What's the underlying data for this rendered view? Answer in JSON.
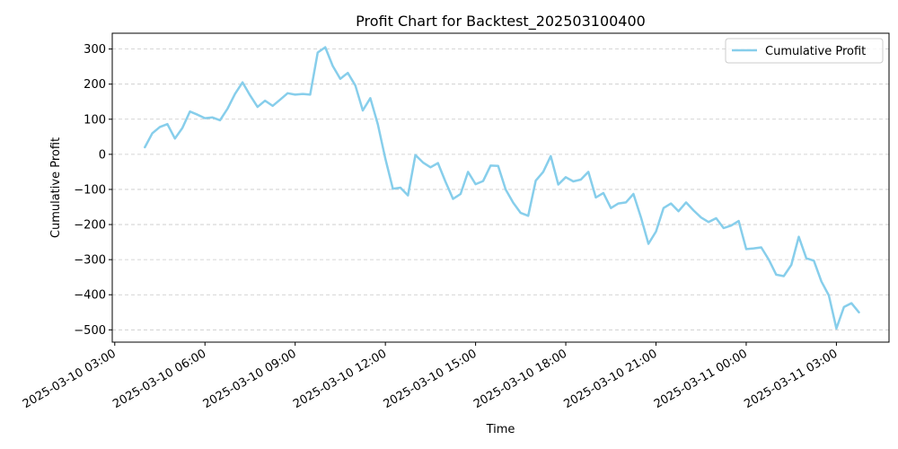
{
  "chart_data": {
    "type": "line",
    "title": "Profit Chart for Backtest_202503100400",
    "xlabel": "Time",
    "ylabel": "Cumulative Profit",
    "xlim": [
      "2025-03-10 02:55",
      "2025-03-11 04:45"
    ],
    "ylim": [
      -535,
      345
    ],
    "grid": {
      "x": false,
      "y": true,
      "style": "dashed"
    },
    "legend_position": "top-right",
    "x_ticks": [
      "2025-03-10 03:00",
      "2025-03-10 06:00",
      "2025-03-10 09:00",
      "2025-03-10 12:00",
      "2025-03-10 15:00",
      "2025-03-10 18:00",
      "2025-03-10 21:00",
      "2025-03-11 00:00",
      "2025-03-11 03:00"
    ],
    "y_ticks": [
      300,
      200,
      100,
      0,
      -100,
      -200,
      -300,
      -400,
      -500
    ],
    "series": [
      {
        "name": "Cumulative Profit",
        "color": "#87ceeb",
        "x": [
          "2025-03-10 04:00",
          "2025-03-10 04:15",
          "2025-03-10 04:30",
          "2025-03-10 04:45",
          "2025-03-10 05:00",
          "2025-03-10 05:15",
          "2025-03-10 05:30",
          "2025-03-10 05:45",
          "2025-03-10 06:00",
          "2025-03-10 06:15",
          "2025-03-10 06:30",
          "2025-03-10 06:45",
          "2025-03-10 07:00",
          "2025-03-10 07:15",
          "2025-03-10 07:30",
          "2025-03-10 07:45",
          "2025-03-10 08:00",
          "2025-03-10 08:15",
          "2025-03-10 08:30",
          "2025-03-10 08:45",
          "2025-03-10 09:00",
          "2025-03-10 09:15",
          "2025-03-10 09:30",
          "2025-03-10 09:45",
          "2025-03-10 10:00",
          "2025-03-10 10:15",
          "2025-03-10 10:30",
          "2025-03-10 10:45",
          "2025-03-10 11:00",
          "2025-03-10 11:15",
          "2025-03-10 11:30",
          "2025-03-10 11:45",
          "2025-03-10 12:00",
          "2025-03-10 12:15",
          "2025-03-10 12:30",
          "2025-03-10 12:45",
          "2025-03-10 13:00",
          "2025-03-10 13:15",
          "2025-03-10 13:30",
          "2025-03-10 13:45",
          "2025-03-10 14:00",
          "2025-03-10 14:15",
          "2025-03-10 14:30",
          "2025-03-10 14:45",
          "2025-03-10 15:00",
          "2025-03-10 15:15",
          "2025-03-10 15:30",
          "2025-03-10 15:45",
          "2025-03-10 16:00",
          "2025-03-10 16:15",
          "2025-03-10 16:30",
          "2025-03-10 16:45",
          "2025-03-10 17:00",
          "2025-03-10 17:15",
          "2025-03-10 17:30",
          "2025-03-10 17:45",
          "2025-03-10 18:00",
          "2025-03-10 18:15",
          "2025-03-10 18:30",
          "2025-03-10 18:45",
          "2025-03-10 19:00",
          "2025-03-10 19:15",
          "2025-03-10 19:30",
          "2025-03-10 19:45",
          "2025-03-10 20:00",
          "2025-03-10 20:15",
          "2025-03-10 20:30",
          "2025-03-10 20:45",
          "2025-03-10 21:00",
          "2025-03-10 21:15",
          "2025-03-10 21:30",
          "2025-03-10 21:45",
          "2025-03-10 22:00",
          "2025-03-10 22:15",
          "2025-03-10 22:30",
          "2025-03-10 22:45",
          "2025-03-10 23:00",
          "2025-03-10 23:15",
          "2025-03-10 23:30",
          "2025-03-10 23:45",
          "2025-03-11 00:00",
          "2025-03-11 00:15",
          "2025-03-11 00:30",
          "2025-03-11 00:45",
          "2025-03-11 01:00",
          "2025-03-11 01:15",
          "2025-03-11 01:30",
          "2025-03-11 01:45",
          "2025-03-11 02:00",
          "2025-03-11 02:15",
          "2025-03-11 02:30",
          "2025-03-11 02:45",
          "2025-03-11 03:00",
          "2025-03-11 03:15",
          "2025-03-11 03:30",
          "2025-03-11 03:45"
        ],
        "y": [
          20,
          60,
          78,
          86,
          45,
          75,
          122,
          113,
          103,
          105,
          97,
          130,
          172,
          205,
          168,
          135,
          153,
          138,
          156,
          174,
          170,
          172,
          170,
          290,
          305,
          252,
          215,
          232,
          196,
          125,
          160,
          85,
          -12,
          -98,
          -95,
          -117,
          -2,
          -23,
          -37,
          -25,
          -78,
          -127,
          -113,
          -50,
          -85,
          -76,
          -32,
          -33,
          -100,
          -138,
          -167,
          -175,
          -75,
          -50,
          -5,
          -86,
          -65,
          -77,
          -72,
          -50,
          -123,
          -110,
          -153,
          -140,
          -137,
          -113,
          -180,
          -255,
          -220,
          -153,
          -140,
          -162,
          -137,
          -160,
          -180,
          -193,
          -182,
          -210,
          -203,
          -190,
          -270,
          -268,
          -265,
          -300,
          -343,
          -347,
          -315,
          -235,
          -296,
          -303,
          -362,
          -402,
          -496,
          -435,
          -424,
          -450
        ]
      }
    ]
  }
}
